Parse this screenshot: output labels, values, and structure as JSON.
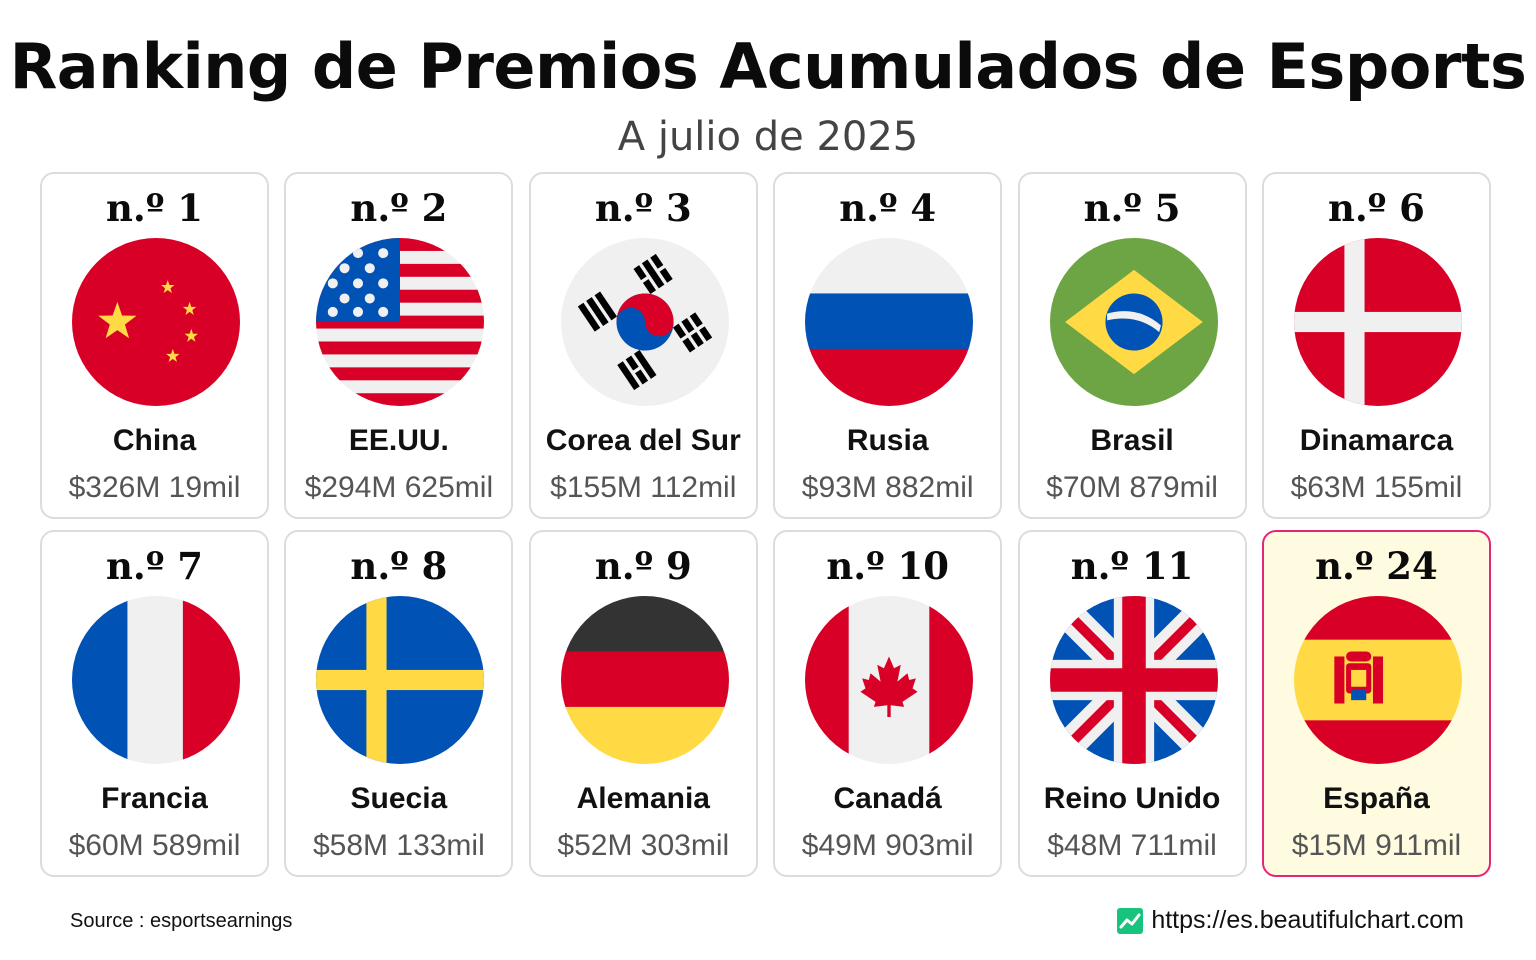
{
  "header": {
    "title": "Ranking de Premios Acumulados de Esports",
    "subtitle": "A julio de 2025"
  },
  "chart_data": {
    "type": "table",
    "title": "Ranking de Premios Acumulados de Esports",
    "subtitle": "A julio de 2025",
    "unit": "USD",
    "items": [
      {
        "rank": "n.º 1",
        "country": "China",
        "value": "$326M 19mil",
        "flag": "china-flag"
      },
      {
        "rank": "n.º 2",
        "country": "EE.UU.",
        "value": "$294M 625mil",
        "flag": "usa-flag"
      },
      {
        "rank": "n.º 3",
        "country": "Corea del Sur",
        "value": "$155M 112mil",
        "flag": "south-korea-flag"
      },
      {
        "rank": "n.º 4",
        "country": "Rusia",
        "value": "$93M 882mil",
        "flag": "russia-flag"
      },
      {
        "rank": "n.º 5",
        "country": "Brasil",
        "value": "$70M 879mil",
        "flag": "brazil-flag"
      },
      {
        "rank": "n.º 6",
        "country": "Dinamarca",
        "value": "$63M 155mil",
        "flag": "denmark-flag"
      },
      {
        "rank": "n.º 7",
        "country": "Francia",
        "value": "$60M 589mil",
        "flag": "france-flag"
      },
      {
        "rank": "n.º 8",
        "country": "Suecia",
        "value": "$58M 133mil",
        "flag": "sweden-flag"
      },
      {
        "rank": "n.º 9",
        "country": "Alemania",
        "value": "$52M 303mil",
        "flag": "germany-flag"
      },
      {
        "rank": "n.º 10",
        "country": "Canadá",
        "value": "$49M 903mil",
        "flag": "canada-flag"
      },
      {
        "rank": "n.º 11",
        "country": "Reino Unido",
        "value": "$48M 711mil",
        "flag": "uk-flag"
      },
      {
        "rank": "n.º 24",
        "country": "España",
        "value": "$15M 911mil",
        "flag": "spain-flag",
        "highlight": true
      }
    ]
  },
  "colors": {
    "highlight_border": "#e3267a",
    "highlight_background": "#fefbe1",
    "card_border": "#dcdcdc",
    "logo_green": "#18c37e"
  },
  "footer": {
    "source": "Source : esportsearnings",
    "website": "https://es.beautifulchart.com",
    "logo_icon": "chart-logo-icon"
  }
}
